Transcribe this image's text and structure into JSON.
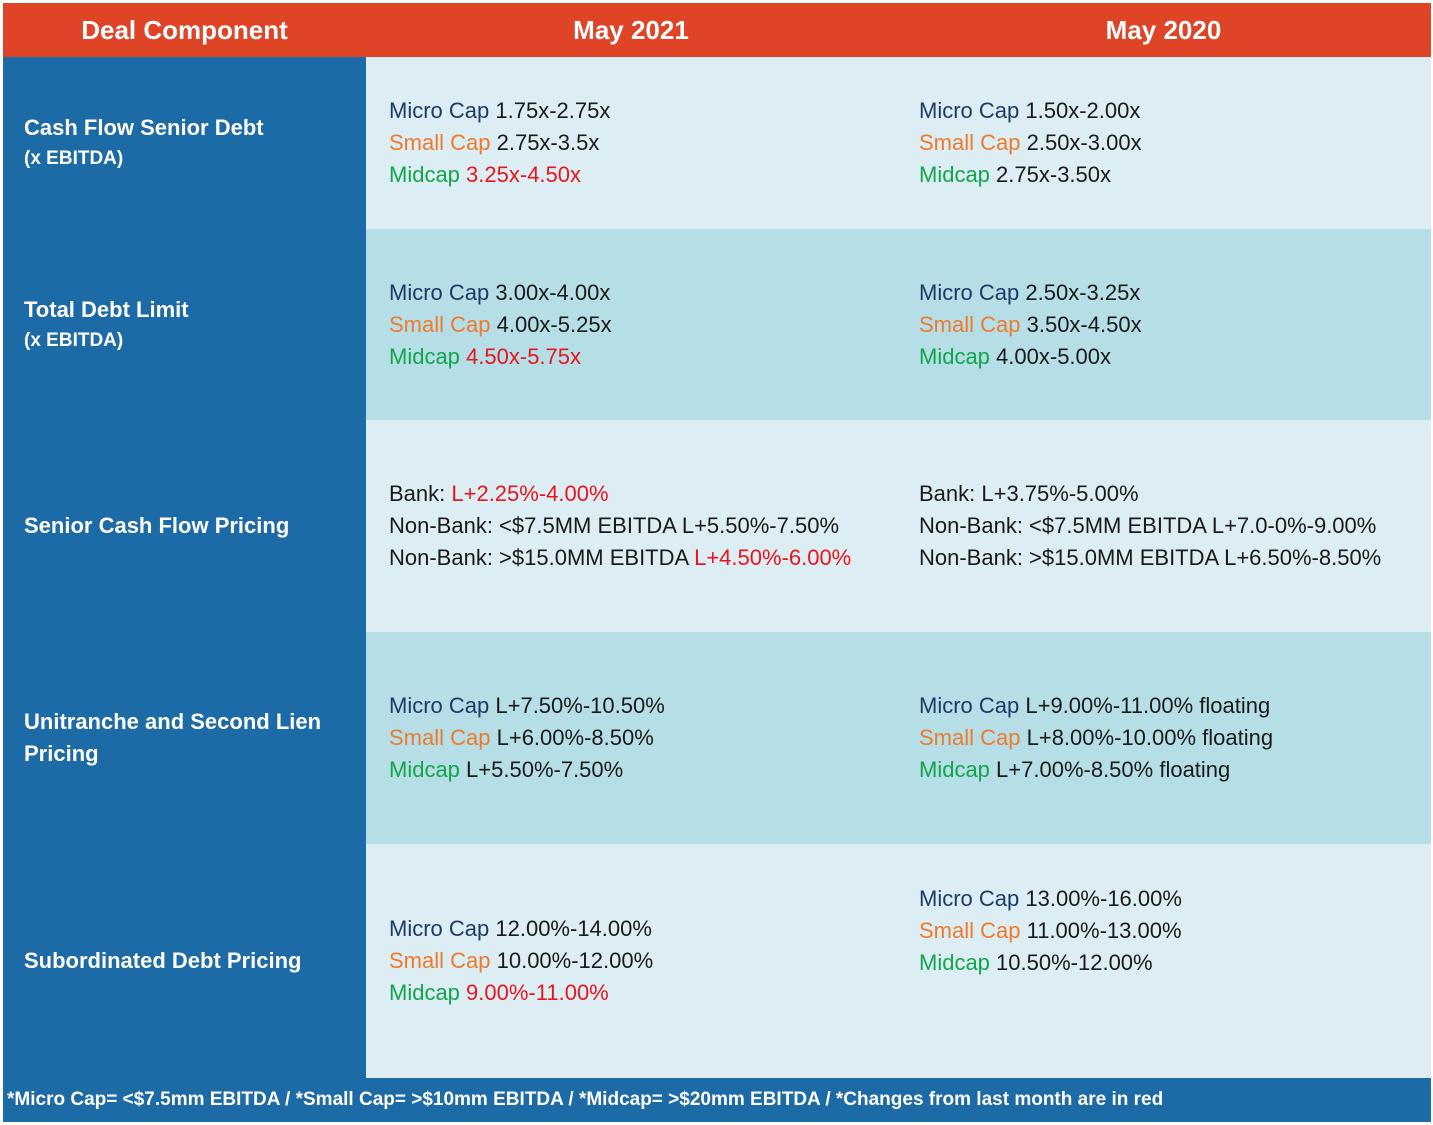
{
  "colors": {
    "header_bg": "#de4425",
    "sidebar_bg": "#1c6aa6",
    "row_light": "#dcedf3",
    "row_dark": "#b6dee6",
    "micro_cap": "#1e3a66",
    "small_cap": "#ef7a2c",
    "midcap": "#12a64a",
    "change_red": "#e8161c"
  },
  "header": {
    "col1": "Deal Component",
    "col2": "May 2021",
    "col3": "May 2020"
  },
  "rows": [
    {
      "label": "Cash Flow Senior Debt",
      "sublabel": "(x EBITDA)",
      "may2021": [
        {
          "tier": "Micro Cap",
          "value": "1.75x-2.75x"
        },
        {
          "tier": "Small Cap",
          "value": "2.75x-3.5x"
        },
        {
          "tier": "Midcap",
          "value": "3.25x-4.50x"
        }
      ],
      "may2020": [
        {
          "tier": "Micro Cap",
          "value": "1.50x-2.00x"
        },
        {
          "tier": "Small Cap",
          "value": "2.50x-3.00x"
        },
        {
          "tier": "Midcap",
          "value": "2.75x-3.50x"
        }
      ]
    },
    {
      "label": "Total Debt Limit",
      "sublabel": "(x EBITDA)",
      "may2021": [
        {
          "tier": "Micro Cap",
          "value": "3.00x-4.00x"
        },
        {
          "tier": "Small Cap",
          "value": "4.00x-5.25x"
        },
        {
          "tier": "Midcap",
          "value": "4.50x-5.75x"
        }
      ],
      "may2020": [
        {
          "tier": "Micro Cap",
          "value": "2.50x-3.25x"
        },
        {
          "tier": "Small Cap",
          "value": "3.50x-4.50x"
        },
        {
          "tier": "Midcap",
          "value": "4.00x-5.00x"
        }
      ]
    },
    {
      "label": "Senior Cash Flow Pricing",
      "may2021": [
        {
          "prefix": "Bank: ",
          "value": "L+2.25%-4.00%"
        },
        {
          "prefix": "Non-Bank: <$7.5MM EBITDA ",
          "value": "L+5.50%-7.50%"
        },
        {
          "prefix": "Non-Bank: >$15.0MM EBITDA ",
          "value": "L+4.50%-6.00%"
        }
      ],
      "may2020": [
        {
          "prefix": "Bank: ",
          "value": "L+3.75%-5.00%"
        },
        {
          "prefix": "Non-Bank: <$7.5MM EBITDA ",
          "value": "L+7.0-0%-9.00%"
        },
        {
          "prefix": "Non-Bank: >$15.0MM EBITDA ",
          "value": "L+6.50%-8.50%"
        }
      ]
    },
    {
      "label": "Unitranche and Second Lien",
      "label2": "Pricing",
      "may2021": [
        {
          "tier": "Micro Cap",
          "value": "L+7.50%-10.50%"
        },
        {
          "tier": "Small Cap",
          "value": "L+6.00%-8.50%"
        },
        {
          "tier": "Midcap",
          "value": "L+5.50%-7.50%"
        }
      ],
      "may2020": [
        {
          "tier": "Micro Cap",
          "value": "L+9.00%-11.00% floating"
        },
        {
          "tier": "Small Cap",
          "value": "L+8.00%-10.00% floating"
        },
        {
          "tier": "Midcap",
          "value": "L+7.00%-8.50% floating"
        }
      ]
    },
    {
      "label": "Subordinated Debt Pricing",
      "may2021": [
        {
          "tier": "Micro Cap",
          "value": "12.00%-14.00%"
        },
        {
          "tier": "Small Cap",
          "value": "10.00%-12.00%"
        },
        {
          "tier": "Midcap",
          "value": "9.00%-11.00%"
        }
      ],
      "may2020": [
        {
          "tier": "Micro Cap",
          "value": "13.00%-16.00%"
        },
        {
          "tier": "Small Cap",
          "value": "11.00%-13.00%"
        },
        {
          "tier": "Midcap",
          "value": "10.50%-12.00%"
        }
      ]
    }
  ],
  "footer": "*Micro Cap= <$7.5mm EBITDA / *Small Cap= >$10mm EBITDA / *Midcap= >$20mm EBITDA / *Changes from last month are in red"
}
